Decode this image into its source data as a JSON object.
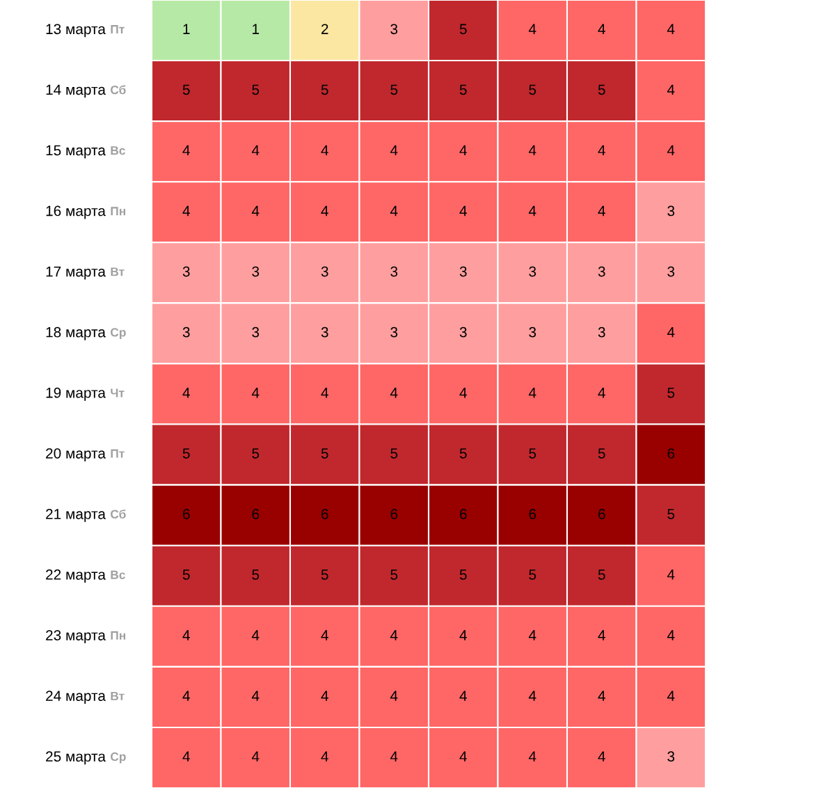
{
  "chart_data": {
    "type": "heatmap",
    "categories": [
      null,
      null,
      null,
      null,
      null,
      null,
      null,
      null
    ],
    "y_categories": [
      "13 марта",
      "14 марта",
      "15 марта",
      "16 марта",
      "17 марта",
      "18 марта",
      "19 марта",
      "20 марта",
      "21 марта",
      "22 марта",
      "23 марта",
      "24 марта",
      "25 марта"
    ],
    "y2_categories": [
      "Пт",
      "Сб",
      "Вс",
      "Пн",
      "Вт",
      "Ср",
      "Чт",
      "Пт",
      "Сб",
      "Вс",
      "Пн",
      "Вт",
      "Ср"
    ],
    "cells": [
      [
        1,
        1,
        2,
        3,
        5,
        4,
        4,
        4
      ],
      [
        5,
        5,
        5,
        5,
        5,
        5,
        5,
        4
      ],
      [
        4,
        4,
        4,
        4,
        4,
        4,
        4,
        4
      ],
      [
        4,
        4,
        4,
        4,
        4,
        4,
        4,
        3
      ],
      [
        3,
        3,
        3,
        3,
        3,
        3,
        3,
        3
      ],
      [
        3,
        3,
        3,
        3,
        3,
        3,
        3,
        4
      ],
      [
        4,
        4,
        4,
        4,
        4,
        4,
        4,
        5
      ],
      [
        5,
        5,
        5,
        5,
        5,
        5,
        5,
        6
      ],
      [
        6,
        6,
        6,
        6,
        6,
        6,
        6,
        5
      ],
      [
        5,
        5,
        5,
        5,
        5,
        5,
        5,
        4
      ],
      [
        4,
        4,
        4,
        4,
        4,
        4,
        4,
        4
      ],
      [
        4,
        4,
        4,
        4,
        4,
        4,
        4,
        4
      ],
      [
        4,
        4,
        4,
        4,
        4,
        4,
        4,
        3
      ]
    ],
    "colors": [
      "#b7e9a6",
      "#fbe7a1",
      "#ff9e9e",
      "#ff6666",
      "#c0282d",
      "#990000"
    ],
    "data_labels": true
  }
}
